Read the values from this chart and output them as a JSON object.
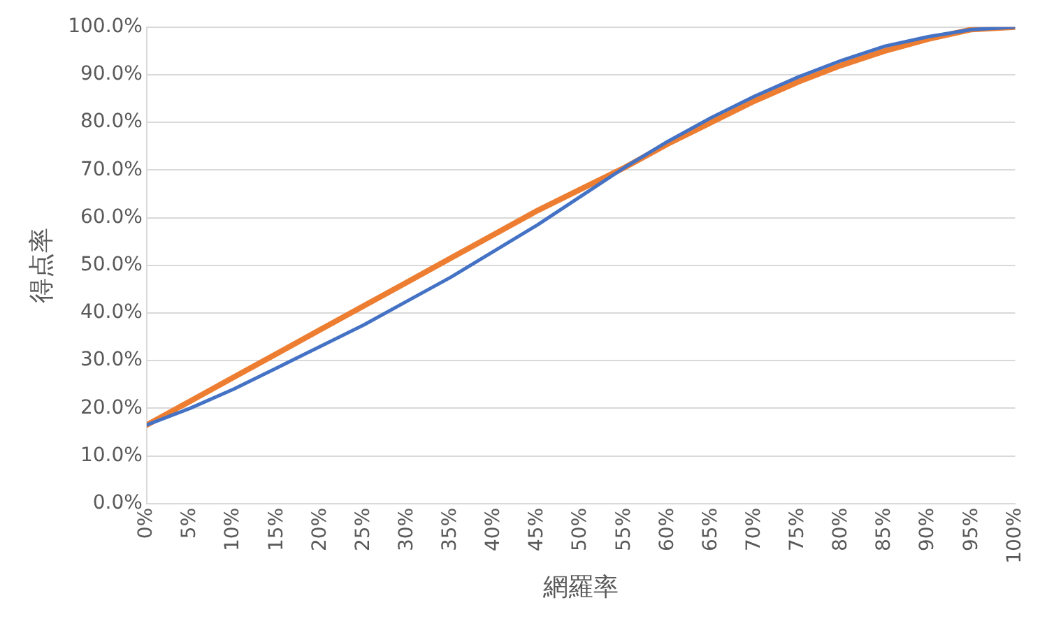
{
  "chart_data": {
    "type": "line",
    "xlabel": "網羅率",
    "ylabel": "得点率",
    "x": [
      0,
      5,
      10,
      15,
      20,
      25,
      30,
      35,
      40,
      45,
      50,
      55,
      60,
      65,
      70,
      75,
      80,
      85,
      90,
      95,
      100
    ],
    "series": [
      {
        "color": "#4472c4",
        "values": [
          16.5,
          20,
          24,
          28.5,
          33,
          37.5,
          42.5,
          47.5,
          53,
          58.5,
          64.5,
          70.5,
          76,
          81,
          85.5,
          89.5,
          93,
          96,
          98,
          99.5,
          100
        ]
      },
      {
        "color": "#ed7d31",
        "values": [
          16.5,
          21.5,
          26.5,
          31.5,
          36.5,
          41.5,
          46.5,
          51.5,
          56.5,
          61.5,
          66,
          70.5,
          75.5,
          80,
          84.5,
          88.5,
          92,
          95,
          97.5,
          99.5,
          100
        ]
      }
    ],
    "xlim": [
      0,
      100
    ],
    "xticks": [
      {
        "value": 0,
        "label": "0%"
      },
      {
        "value": 5,
        "label": "5%"
      },
      {
        "value": 10,
        "label": "10%"
      },
      {
        "value": 15,
        "label": "15%"
      },
      {
        "value": 20,
        "label": "20%"
      },
      {
        "value": 25,
        "label": "25%"
      },
      {
        "value": 30,
        "label": "30%"
      },
      {
        "value": 35,
        "label": "35%"
      },
      {
        "value": 40,
        "label": "40%"
      },
      {
        "value": 45,
        "label": "45%"
      },
      {
        "value": 50,
        "label": "50%"
      },
      {
        "value": 55,
        "label": "55%"
      },
      {
        "value": 60,
        "label": "60%"
      },
      {
        "value": 65,
        "label": "65%"
      },
      {
        "value": 70,
        "label": "70%"
      },
      {
        "value": 75,
        "label": "75%"
      },
      {
        "value": 80,
        "label": "80%"
      },
      {
        "value": 85,
        "label": "85%"
      },
      {
        "value": 90,
        "label": "90%"
      },
      {
        "value": 95,
        "label": "95%"
      },
      {
        "value": 100,
        "label": "100%"
      }
    ],
    "ylim": [
      0,
      100
    ],
    "yticks": [
      {
        "value": 0,
        "label": "0.0%"
      },
      {
        "value": 10,
        "label": "10.0%"
      },
      {
        "value": 20,
        "label": "20.0%"
      },
      {
        "value": 30,
        "label": "30.0%"
      },
      {
        "value": 40,
        "label": "40.0%"
      },
      {
        "value": 50,
        "label": "50.0%"
      },
      {
        "value": 60,
        "label": "60.0%"
      },
      {
        "value": 70,
        "label": "70.0%"
      },
      {
        "value": 80,
        "label": "80.0%"
      },
      {
        "value": 90,
        "label": "90.0%"
      },
      {
        "value": 100,
        "label": "100.0%"
      }
    ],
    "grid": "y",
    "line_style": "solid"
  }
}
